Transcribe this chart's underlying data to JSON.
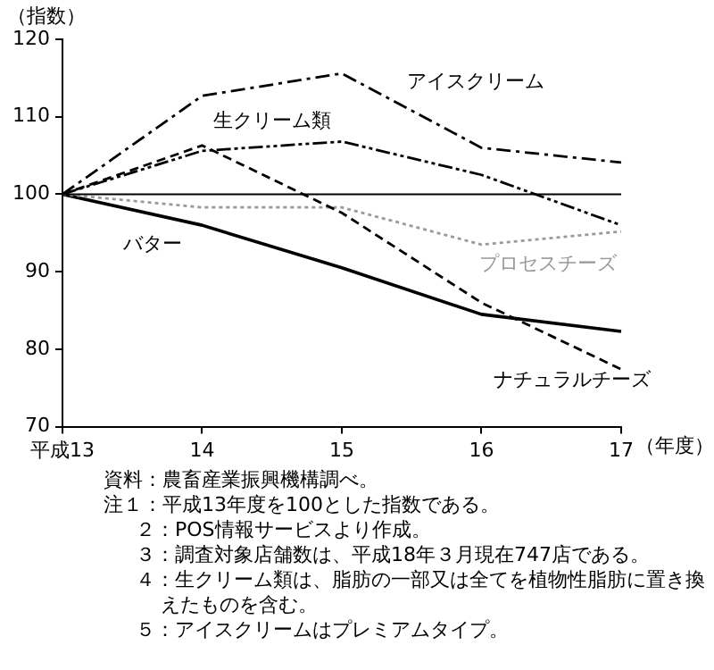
{
  "chart_data": {
    "type": "line",
    "xlabel": "（年度）",
    "ylabel": "（指数）",
    "categories": [
      "平成13",
      "14",
      "15",
      "16",
      "17"
    ],
    "series": [
      {
        "name": "アイスクリーム",
        "color": "#000000",
        "line_style": "dashed",
        "values": [
          100,
          112.7,
          115.6,
          106,
          104.1
        ]
      },
      {
        "name": "生クリーム類",
        "color": "#000000",
        "line_style": "dashed",
        "values": [
          100,
          105.6,
          106.8,
          102.5,
          96
        ]
      },
      {
        "name": "ナチュラルチーズ",
        "color": "#000000",
        "line_style": "dashed",
        "values": [
          100,
          106.3,
          97.6,
          86,
          77.4
        ]
      },
      {
        "name": "プロセスチーズ",
        "color": "#999999",
        "line_style": "dotted",
        "values": [
          100,
          98.3,
          98.3,
          93.5,
          95.2
        ]
      },
      {
        "name": "バター",
        "color": "#000000",
        "line_style": "solid",
        "values": [
          100,
          96,
          90.5,
          84.5,
          82.3
        ]
      }
    ],
    "ylim": [
      70,
      120
    ],
    "yticks": [
      70,
      80,
      90,
      100,
      110,
      120
    ],
    "ref_lines": [
      {
        "axis": "y",
        "value": 100,
        "color": "#000000",
        "line_style": "solid"
      }
    ],
    "grid": false,
    "legend": false,
    "marker": "none",
    "annotations": [
      "資料：農畜産業振興機構調べ。",
      "注１：平成13年度を100とした指数である。",
      "２：POS情報サービスより作成。",
      "３：調査対象店舗数は、平成18年３月現在747店である。",
      "４：生クリーム類は、脂肪の一部又は全てを植物性脂肪に置き換えたものを含む。",
      "５：アイスクリームはプレミアムタイプ。"
    ]
  }
}
